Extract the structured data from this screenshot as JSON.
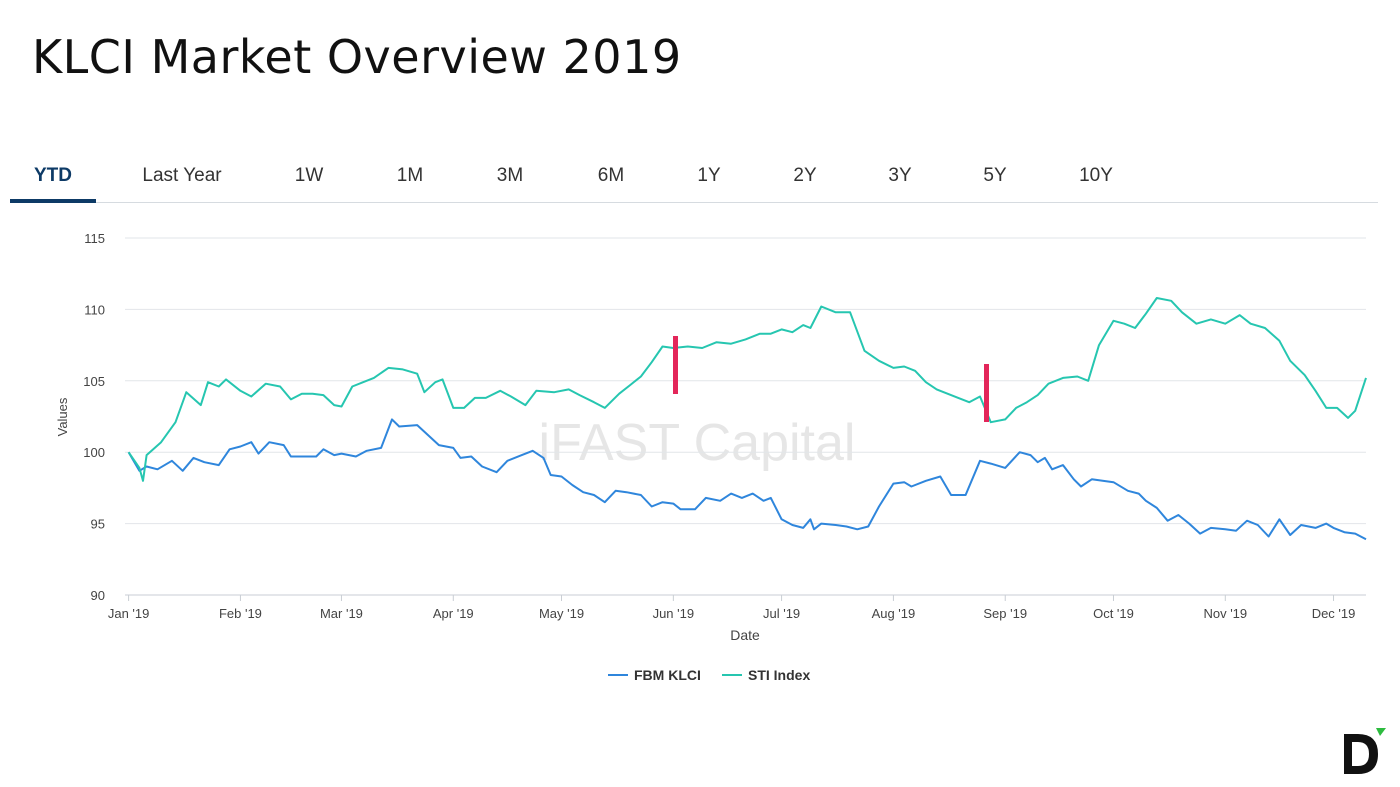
{
  "header": {
    "title": "KLCI Market Overview 2019"
  },
  "tabs": [
    {
      "label": "YTD",
      "active": true
    },
    {
      "label": "Last Year",
      "active": false
    },
    {
      "label": "1W",
      "active": false
    },
    {
      "label": "1M",
      "active": false
    },
    {
      "label": "3M",
      "active": false
    },
    {
      "label": "6M",
      "active": false
    },
    {
      "label": "1Y",
      "active": false
    },
    {
      "label": "2Y",
      "active": false
    },
    {
      "label": "3Y",
      "active": false
    },
    {
      "label": "5Y",
      "active": false
    },
    {
      "label": "10Y",
      "active": false
    }
  ],
  "watermark": "iFAST Capital",
  "logo_letter": "D",
  "colors": {
    "fbm_klci": "#2f86dc",
    "sti_index": "#26c6b0",
    "marker": "#e3265a",
    "tab_active": "#0d3a66"
  },
  "chart_data": {
    "type": "line",
    "xlabel": "Date",
    "ylabel": "Values",
    "ylim": [
      90,
      115
    ],
    "yticks": [
      90,
      95,
      100,
      105,
      110,
      115
    ],
    "xlim": [
      "2018-12-31",
      "2019-12-10"
    ],
    "xticks": [
      {
        "date": "2019-01-01",
        "label": "Jan '19"
      },
      {
        "date": "2019-02-01",
        "label": "Feb '19"
      },
      {
        "date": "2019-03-01",
        "label": "Mar '19"
      },
      {
        "date": "2019-04-01",
        "label": "Apr '19"
      },
      {
        "date": "2019-05-01",
        "label": "May '19"
      },
      {
        "date": "2019-06-01",
        "label": "Jun '19"
      },
      {
        "date": "2019-07-01",
        "label": "Jul '19"
      },
      {
        "date": "2019-08-01",
        "label": "Aug '19"
      },
      {
        "date": "2019-09-01",
        "label": "Sep '19"
      },
      {
        "date": "2019-10-01",
        "label": "Oct '19"
      },
      {
        "date": "2019-11-01",
        "label": "Nov '19"
      },
      {
        "date": "2019-12-01",
        "label": "Dec '19"
      }
    ],
    "grid": true,
    "legend_position": "bottom-center",
    "series": [
      {
        "name": "FBM KLCI",
        "points": [
          [
            "2019-01-01",
            100.0
          ],
          [
            "2019-01-04",
            98.7
          ],
          [
            "2019-01-06",
            99.0
          ],
          [
            "2019-01-09",
            98.8
          ],
          [
            "2019-01-13",
            99.4
          ],
          [
            "2019-01-16",
            98.7
          ],
          [
            "2019-01-19",
            99.6
          ],
          [
            "2019-01-22",
            99.3
          ],
          [
            "2019-01-26",
            99.1
          ],
          [
            "2019-01-29",
            100.2
          ],
          [
            "2019-02-01",
            100.4
          ],
          [
            "2019-02-04",
            100.7
          ],
          [
            "2019-02-06",
            99.9
          ],
          [
            "2019-02-09",
            100.7
          ],
          [
            "2019-02-13",
            100.5
          ],
          [
            "2019-02-15",
            99.7
          ],
          [
            "2019-02-19",
            99.7
          ],
          [
            "2019-02-22",
            99.7
          ],
          [
            "2019-02-24",
            100.2
          ],
          [
            "2019-02-27",
            99.8
          ],
          [
            "2019-03-01",
            99.9
          ],
          [
            "2019-03-05",
            99.7
          ],
          [
            "2019-03-08",
            100.1
          ],
          [
            "2019-03-12",
            100.3
          ],
          [
            "2019-03-15",
            102.3
          ],
          [
            "2019-03-17",
            101.8
          ],
          [
            "2019-03-22",
            101.9
          ],
          [
            "2019-03-28",
            100.5
          ],
          [
            "2019-04-01",
            100.3
          ],
          [
            "2019-04-03",
            99.6
          ],
          [
            "2019-04-06",
            99.7
          ],
          [
            "2019-04-09",
            99.0
          ],
          [
            "2019-04-13",
            98.6
          ],
          [
            "2019-04-16",
            99.4
          ],
          [
            "2019-04-20",
            99.8
          ],
          [
            "2019-04-23",
            100.1
          ],
          [
            "2019-04-26",
            99.6
          ],
          [
            "2019-04-28",
            98.4
          ],
          [
            "2019-05-01",
            98.3
          ],
          [
            "2019-05-04",
            97.7
          ],
          [
            "2019-05-07",
            97.2
          ],
          [
            "2019-05-10",
            97.0
          ],
          [
            "2019-05-13",
            96.5
          ],
          [
            "2019-05-16",
            97.3
          ],
          [
            "2019-05-19",
            97.2
          ],
          [
            "2019-05-23",
            97.0
          ],
          [
            "2019-05-26",
            96.2
          ],
          [
            "2019-05-29",
            96.5
          ],
          [
            "2019-06-01",
            96.4
          ],
          [
            "2019-06-03",
            96.0
          ],
          [
            "2019-06-07",
            96.0
          ],
          [
            "2019-06-10",
            96.8
          ],
          [
            "2019-06-14",
            96.6
          ],
          [
            "2019-06-17",
            97.1
          ],
          [
            "2019-06-20",
            96.8
          ],
          [
            "2019-06-23",
            97.1
          ],
          [
            "2019-06-26",
            96.6
          ],
          [
            "2019-06-28",
            96.8
          ],
          [
            "2019-07-01",
            95.3
          ],
          [
            "2019-07-04",
            94.9
          ],
          [
            "2019-07-07",
            94.7
          ],
          [
            "2019-07-09",
            95.3
          ],
          [
            "2019-07-10",
            94.6
          ],
          [
            "2019-07-12",
            95.0
          ],
          [
            "2019-07-16",
            94.9
          ],
          [
            "2019-07-19",
            94.8
          ],
          [
            "2019-07-22",
            94.6
          ],
          [
            "2019-07-25",
            94.8
          ],
          [
            "2019-07-28",
            96.2
          ],
          [
            "2019-08-01",
            97.8
          ],
          [
            "2019-08-04",
            97.9
          ],
          [
            "2019-08-06",
            97.6
          ],
          [
            "2019-08-10",
            98.0
          ],
          [
            "2019-08-14",
            98.3
          ],
          [
            "2019-08-17",
            97.0
          ],
          [
            "2019-08-21",
            97.0
          ],
          [
            "2019-08-25",
            99.4
          ],
          [
            "2019-08-28",
            99.2
          ],
          [
            "2019-09-01",
            98.9
          ],
          [
            "2019-09-05",
            100.0
          ],
          [
            "2019-09-08",
            99.8
          ],
          [
            "2019-09-10",
            99.3
          ],
          [
            "2019-09-12",
            99.6
          ],
          [
            "2019-09-14",
            98.8
          ],
          [
            "2019-09-17",
            99.1
          ],
          [
            "2019-09-20",
            98.1
          ],
          [
            "2019-09-22",
            97.6
          ],
          [
            "2019-09-25",
            98.1
          ],
          [
            "2019-09-28",
            98.0
          ],
          [
            "2019-10-01",
            97.9
          ],
          [
            "2019-10-05",
            97.3
          ],
          [
            "2019-10-08",
            97.1
          ],
          [
            "2019-10-10",
            96.6
          ],
          [
            "2019-10-13",
            96.1
          ],
          [
            "2019-10-16",
            95.2
          ],
          [
            "2019-10-19",
            95.6
          ],
          [
            "2019-10-22",
            95.0
          ],
          [
            "2019-10-25",
            94.3
          ],
          [
            "2019-10-28",
            94.7
          ],
          [
            "2019-11-01",
            94.6
          ],
          [
            "2019-11-04",
            94.5
          ],
          [
            "2019-11-07",
            95.2
          ],
          [
            "2019-11-10",
            94.9
          ],
          [
            "2019-11-13",
            94.1
          ],
          [
            "2019-11-16",
            95.3
          ],
          [
            "2019-11-19",
            94.2
          ],
          [
            "2019-11-22",
            94.9
          ],
          [
            "2019-11-26",
            94.7
          ],
          [
            "2019-11-29",
            95.0
          ],
          [
            "2019-12-01",
            94.7
          ],
          [
            "2019-12-04",
            94.4
          ],
          [
            "2019-12-07",
            94.3
          ],
          [
            "2019-12-10",
            93.9
          ]
        ]
      },
      {
        "name": "STI Index",
        "points": [
          [
            "2019-01-01",
            100.0
          ],
          [
            "2019-01-04",
            98.9
          ],
          [
            "2019-01-05",
            98.0
          ],
          [
            "2019-01-06",
            99.8
          ],
          [
            "2019-01-10",
            100.7
          ],
          [
            "2019-01-14",
            102.1
          ],
          [
            "2019-01-17",
            104.2
          ],
          [
            "2019-01-21",
            103.3
          ],
          [
            "2019-01-23",
            104.9
          ],
          [
            "2019-01-26",
            104.6
          ],
          [
            "2019-01-28",
            105.1
          ],
          [
            "2019-02-01",
            104.3
          ],
          [
            "2019-02-04",
            103.9
          ],
          [
            "2019-02-08",
            104.8
          ],
          [
            "2019-02-12",
            104.6
          ],
          [
            "2019-02-15",
            103.7
          ],
          [
            "2019-02-18",
            104.1
          ],
          [
            "2019-02-21",
            104.1
          ],
          [
            "2019-02-24",
            104.0
          ],
          [
            "2019-02-27",
            103.3
          ],
          [
            "2019-03-01",
            103.2
          ],
          [
            "2019-03-04",
            104.6
          ],
          [
            "2019-03-07",
            104.9
          ],
          [
            "2019-03-10",
            105.2
          ],
          [
            "2019-03-14",
            105.9
          ],
          [
            "2019-03-18",
            105.8
          ],
          [
            "2019-03-22",
            105.5
          ],
          [
            "2019-03-24",
            104.2
          ],
          [
            "2019-03-27",
            104.9
          ],
          [
            "2019-03-29",
            105.1
          ],
          [
            "2019-04-01",
            103.1
          ],
          [
            "2019-04-04",
            103.1
          ],
          [
            "2019-04-07",
            103.8
          ],
          [
            "2019-04-10",
            103.8
          ],
          [
            "2019-04-14",
            104.3
          ],
          [
            "2019-04-17",
            103.9
          ],
          [
            "2019-04-21",
            103.3
          ],
          [
            "2019-04-24",
            104.3
          ],
          [
            "2019-04-29",
            104.2
          ],
          [
            "2019-05-03",
            104.4
          ],
          [
            "2019-05-06",
            104.0
          ],
          [
            "2019-05-10",
            103.5
          ],
          [
            "2019-05-13",
            103.1
          ],
          [
            "2019-05-17",
            104.1
          ],
          [
            "2019-05-20",
            104.7
          ],
          [
            "2019-05-23",
            105.3
          ],
          [
            "2019-05-26",
            106.3
          ],
          [
            "2019-05-29",
            107.4
          ],
          [
            "2019-06-01",
            107.3
          ],
          [
            "2019-06-05",
            107.4
          ],
          [
            "2019-06-09",
            107.3
          ],
          [
            "2019-06-13",
            107.7
          ],
          [
            "2019-06-17",
            107.6
          ],
          [
            "2019-06-21",
            107.9
          ],
          [
            "2019-06-25",
            108.3
          ],
          [
            "2019-06-28",
            108.3
          ],
          [
            "2019-07-01",
            108.6
          ],
          [
            "2019-07-04",
            108.4
          ],
          [
            "2019-07-07",
            108.9
          ],
          [
            "2019-07-09",
            108.7
          ],
          [
            "2019-07-12",
            110.2
          ],
          [
            "2019-07-16",
            109.8
          ],
          [
            "2019-07-20",
            109.8
          ],
          [
            "2019-07-24",
            107.1
          ],
          [
            "2019-07-28",
            106.4
          ],
          [
            "2019-08-01",
            105.9
          ],
          [
            "2019-08-04",
            106.0
          ],
          [
            "2019-08-07",
            105.7
          ],
          [
            "2019-08-10",
            104.9
          ],
          [
            "2019-08-13",
            104.4
          ],
          [
            "2019-08-16",
            104.1
          ],
          [
            "2019-08-19",
            103.8
          ],
          [
            "2019-08-22",
            103.5
          ],
          [
            "2019-08-25",
            103.9
          ],
          [
            "2019-08-28",
            102.1
          ],
          [
            "2019-09-01",
            102.3
          ],
          [
            "2019-09-04",
            103.1
          ],
          [
            "2019-09-07",
            103.5
          ],
          [
            "2019-09-10",
            104.0
          ],
          [
            "2019-09-13",
            104.8
          ],
          [
            "2019-09-17",
            105.2
          ],
          [
            "2019-09-21",
            105.3
          ],
          [
            "2019-09-24",
            105.0
          ],
          [
            "2019-09-27",
            107.5
          ],
          [
            "2019-10-01",
            109.2
          ],
          [
            "2019-10-04",
            109.0
          ],
          [
            "2019-10-07",
            108.7
          ],
          [
            "2019-10-10",
            109.7
          ],
          [
            "2019-10-13",
            110.8
          ],
          [
            "2019-10-17",
            110.6
          ],
          [
            "2019-10-20",
            109.8
          ],
          [
            "2019-10-24",
            109.0
          ],
          [
            "2019-10-28",
            109.3
          ],
          [
            "2019-11-01",
            109.0
          ],
          [
            "2019-11-05",
            109.6
          ],
          [
            "2019-11-08",
            109.0
          ],
          [
            "2019-11-12",
            108.7
          ],
          [
            "2019-11-16",
            107.8
          ],
          [
            "2019-11-19",
            106.4
          ],
          [
            "2019-11-23",
            105.4
          ],
          [
            "2019-11-26",
            104.3
          ],
          [
            "2019-11-29",
            103.1
          ],
          [
            "2019-12-02",
            103.1
          ],
          [
            "2019-12-05",
            102.4
          ],
          [
            "2019-12-07",
            102.9
          ],
          [
            "2019-12-10",
            105.2
          ]
        ]
      }
    ],
    "markers": []
  }
}
